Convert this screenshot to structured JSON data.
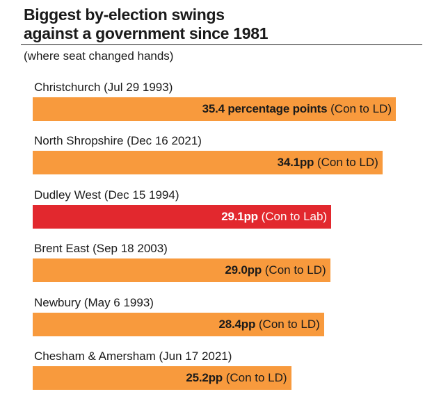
{
  "header": {
    "title_line1": "Biggest by-election swings",
    "title_line2": "against a government since 1981",
    "subtitle": "(where seat changed hands)"
  },
  "colors": {
    "default_bar": "#f89a3d",
    "highlight_bar": "#e2282e",
    "text_dark": "#1a1a1a",
    "text_light": "#ffffff"
  },
  "chart_data": {
    "type": "bar",
    "orientation": "horizontal",
    "unit": "percentage points",
    "xlim": [
      0,
      35.4
    ],
    "categories": [
      "Christchurch (Jul 29 1993)",
      "North Shropshire (Dec 16 2021)",
      "Dudley West (Dec 15 1994)",
      "Brent East (Sep 18 2003)",
      "Newbury (May 6 1993)",
      "Chesham & Amersham (Jun 17 2021)"
    ],
    "values": [
      35.4,
      34.1,
      29.1,
      29.0,
      28.4,
      25.2
    ],
    "value_labels": [
      "35.4 percentage points",
      "34.1pp",
      "29.1pp",
      "29.0pp",
      "28.4pp",
      "25.2pp"
    ],
    "annotations": [
      "(Con to LD)",
      "(Con to LD)",
      "(Con to Lab)",
      "(Con to LD)",
      "(Con to LD)",
      "(Con to LD)"
    ],
    "bar_colors": [
      "#f89a3d",
      "#f89a3d",
      "#e2282e",
      "#f89a3d",
      "#f89a3d",
      "#f89a3d"
    ],
    "grid": false,
    "legend": false
  }
}
